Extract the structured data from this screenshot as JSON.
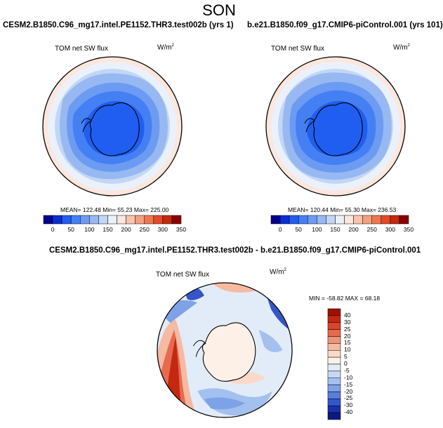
{
  "title": "SON",
  "panels": [
    {
      "case_title": "CESM2.B1850.C96_mg17.intel.PE1152.THR3.test002b (yrs 1)",
      "variable": "TOM net SW flux",
      "units": "W/m",
      "units_sup": "2",
      "stats": "MEAN= 122.48  Min=  55.23  Max= 225.00",
      "colorbar": {
        "labels": [
          "0",
          "50",
          "100",
          "150",
          "200",
          "250",
          "300",
          "350"
        ],
        "colors": [
          "#00008c",
          "#0a2ed4",
          "#1f5ef0",
          "#4480f4",
          "#6c9bf2",
          "#98b8f2",
          "#c2d7f5",
          "#eaf1fb",
          "#fde6dc",
          "#f9c4ad",
          "#f4a07e",
          "#ee7750",
          "#e24a28",
          "#c32a0e",
          "#8b0000"
        ]
      }
    },
    {
      "case_title": "b.e21.B1850.f09_g17.CMIP6-piControl.001 (yrs 101)",
      "variable": "TOM net SW flux",
      "units": "W/m",
      "units_sup": "2",
      "stats": "MEAN= 120.44  Min=  55.30  Max= 236.53",
      "colorbar": {
        "labels": [
          "0",
          "50",
          "100",
          "150",
          "200",
          "250",
          "300",
          "350"
        ],
        "colors": [
          "#00008c",
          "#0a2ed4",
          "#1f5ef0",
          "#4480f4",
          "#6c9bf2",
          "#98b8f2",
          "#c2d7f5",
          "#eaf1fb",
          "#fde6dc",
          "#f9c4ad",
          "#f4a07e",
          "#ee7750",
          "#e24a28",
          "#c32a0e",
          "#8b0000"
        ]
      }
    }
  ],
  "diff": {
    "case_title": "CESM2.B1850.C96_mg17.intel.PE1152.THR3.test002b - b.e21.B1850.f09_g17.CMIP6-piControl.001",
    "variable": "TOM net SW flux",
    "units": "W/m",
    "units_sup": "2",
    "stats": "MIN = -58.82  MAX =  68.18",
    "colorbar": {
      "labels": [
        "40",
        "30",
        "25",
        "20",
        "15",
        "10",
        "5",
        "0",
        "-5",
        "-10",
        "-15",
        "-20",
        "-25",
        "-30",
        "-40"
      ],
      "colors": [
        "#a01000",
        "#c42810",
        "#d8452a",
        "#e66a4e",
        "#f09478",
        "#f6b9a2",
        "#fad9c8",
        "#fdf0e6",
        "#e2ecf8",
        "#c6d9f4",
        "#a3c0ef",
        "#7ea2e8",
        "#587fdc",
        "#3556c8",
        "#1932a8",
        "#0a1a80"
      ]
    }
  }
}
